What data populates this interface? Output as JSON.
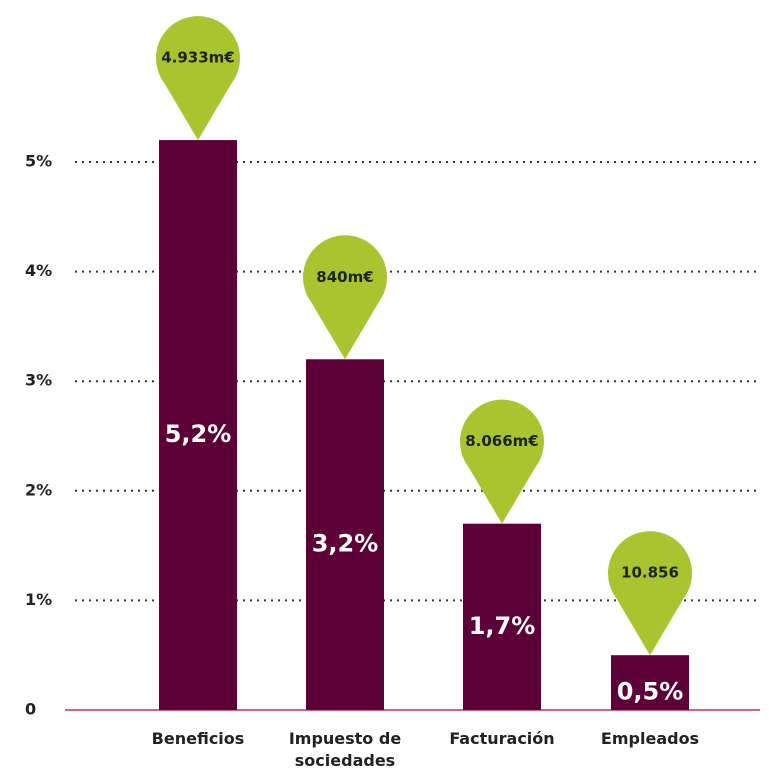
{
  "chart_data": {
    "type": "bar",
    "categories": [
      "Beneficios",
      "Impuesto de sociedades",
      "Facturación",
      "Empleados"
    ],
    "values": [
      5.2,
      3.2,
      1.7,
      0.5
    ],
    "value_labels": [
      "5,2%",
      "3,2%",
      "1,7%",
      "0,5%"
    ],
    "annotations": [
      "4.933m€",
      "840m€",
      "8.066m€",
      "10.856"
    ],
    "color": "#5c0037",
    "annotation_color": "#a8c530",
    "ylim": [
      0,
      6
    ],
    "yticks": [
      0,
      {
        "value": 1,
        "label": "1%"
      },
      {
        "value": 2,
        "label": "2%"
      },
      {
        "value": 3,
        "label": "3%"
      },
      {
        "value": 4,
        "label": "4%"
      },
      {
        "value": 5,
        "label": "5%"
      }
    ],
    "grid": true
  }
}
